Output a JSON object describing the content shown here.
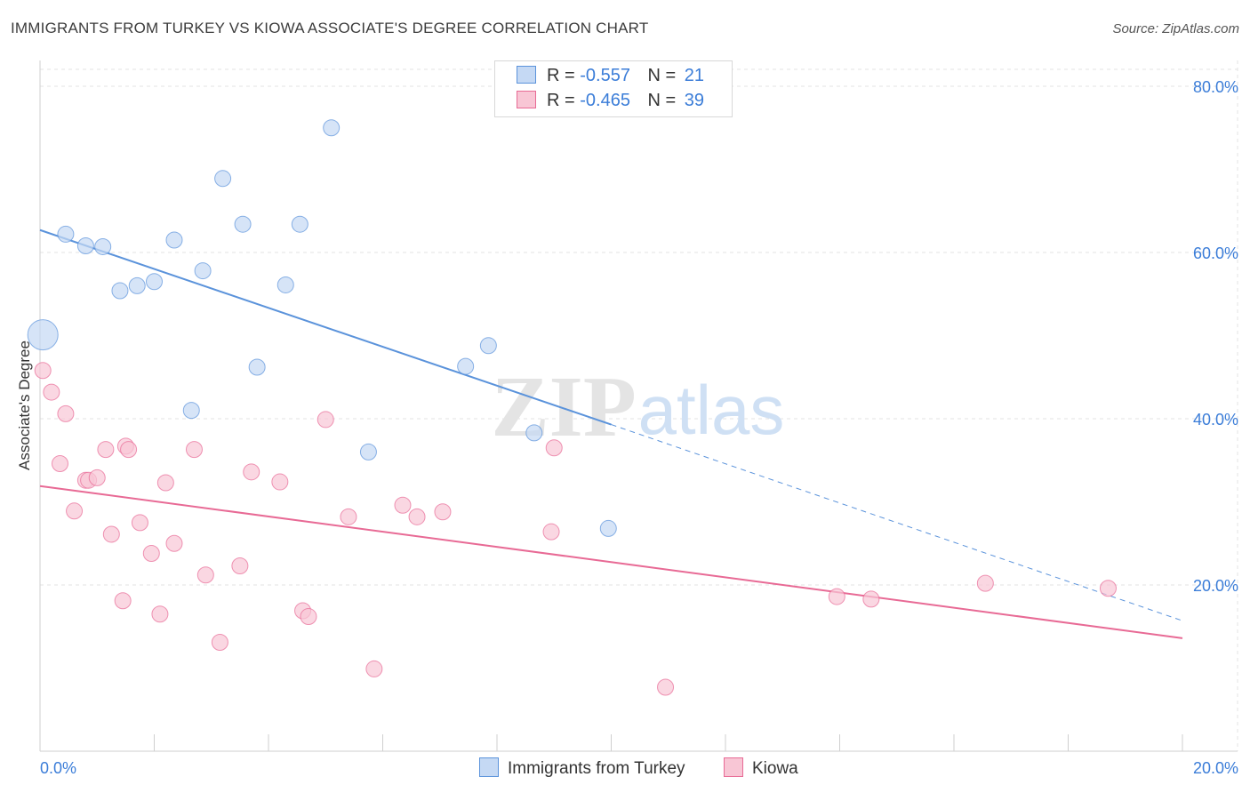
{
  "header": {
    "title": "IMMIGRANTS FROM TURKEY VS KIOWA ASSOCIATE'S DEGREE CORRELATION CHART",
    "source": "Source: ZipAtlas.com"
  },
  "watermark": {
    "zip": "ZIP",
    "atlas": "atlas"
  },
  "legend": {
    "rows": [
      {
        "r_label": "R =",
        "r_value": "-0.557",
        "n_label": "N =",
        "n_value": "21",
        "color": "#a9c7f0"
      },
      {
        "r_label": "R =",
        "r_value": "-0.465",
        "n_label": "N =",
        "n_value": "39",
        "color": "#f5b8c9"
      }
    ]
  },
  "bottom_legend": {
    "series1": "Immigrants from Turkey",
    "series2": "Kiowa"
  },
  "chart_data": {
    "type": "scatter",
    "title": "IMMIGRANTS FROM TURKEY VS KIOWA ASSOCIATE'S DEGREE CORRELATION CHART",
    "xlabel": "",
    "ylabel": "Associate's Degree",
    "xlim": [
      0,
      20
    ],
    "ylim": [
      0,
      80
    ],
    "x_ticks": [
      0,
      2,
      4,
      6,
      8,
      10,
      12,
      14,
      16,
      18,
      20
    ],
    "x_tick_labels": {
      "0": "0.0%",
      "20": "20.0%"
    },
    "y_ticks": [
      20,
      40,
      60,
      80
    ],
    "y_tick_labels": [
      "20.0%",
      "40.0%",
      "60.0%",
      "80.0%"
    ],
    "grid": "horizontal dashed",
    "legend_position": "top-center",
    "series": [
      {
        "name": "Immigrants from Turkey",
        "color": "#5b93db",
        "fill": "#c5d9f4",
        "r": -0.557,
        "n": 21,
        "points": [
          {
            "x": 0.45,
            "y": 62.2
          },
          {
            "x": 0.8,
            "y": 60.8
          },
          {
            "x": 1.1,
            "y": 60.7
          },
          {
            "x": 1.4,
            "y": 55.4
          },
          {
            "x": 1.7,
            "y": 56.0
          },
          {
            "x": 2.0,
            "y": 56.5
          },
          {
            "x": 2.35,
            "y": 61.5
          },
          {
            "x": 2.85,
            "y": 57.8
          },
          {
            "x": 3.2,
            "y": 68.9
          },
          {
            "x": 3.55,
            "y": 63.4
          },
          {
            "x": 4.55,
            "y": 63.4
          },
          {
            "x": 5.1,
            "y": 75.0
          },
          {
            "x": 4.3,
            "y": 56.1
          },
          {
            "x": 3.8,
            "y": 46.2
          },
          {
            "x": 2.65,
            "y": 41.0
          },
          {
            "x": 5.75,
            "y": 36.0
          },
          {
            "x": 7.85,
            "y": 48.8
          },
          {
            "x": 7.45,
            "y": 46.3
          },
          {
            "x": 8.65,
            "y": 38.3
          },
          {
            "x": 9.95,
            "y": 26.8
          },
          {
            "x": 0.05,
            "y": 50.1,
            "large": true
          }
        ],
        "trend": {
          "x1": 0,
          "y1": 62.7,
          "x2": 10.0,
          "y2": 39.3,
          "dash_to_x": 20,
          "dash_to_y": 15.7
        }
      },
      {
        "name": "Kiowa",
        "color": "#e86a95",
        "fill": "#f8c6d5",
        "r": -0.465,
        "n": 39,
        "points": [
          {
            "x": 0.05,
            "y": 45.8
          },
          {
            "x": 0.2,
            "y": 43.2
          },
          {
            "x": 0.45,
            "y": 40.6
          },
          {
            "x": 0.35,
            "y": 34.6
          },
          {
            "x": 0.6,
            "y": 28.9
          },
          {
            "x": 0.8,
            "y": 32.6
          },
          {
            "x": 0.85,
            "y": 32.6
          },
          {
            "x": 1.0,
            "y": 32.9
          },
          {
            "x": 1.15,
            "y": 36.3
          },
          {
            "x": 1.25,
            "y": 26.1
          },
          {
            "x": 1.45,
            "y": 18.1
          },
          {
            "x": 1.5,
            "y": 36.7
          },
          {
            "x": 1.55,
            "y": 36.3
          },
          {
            "x": 1.75,
            "y": 27.5
          },
          {
            "x": 1.95,
            "y": 23.8
          },
          {
            "x": 2.1,
            "y": 16.5
          },
          {
            "x": 2.2,
            "y": 32.3
          },
          {
            "x": 2.35,
            "y": 25.0
          },
          {
            "x": 2.7,
            "y": 36.3
          },
          {
            "x": 2.9,
            "y": 21.2
          },
          {
            "x": 3.15,
            "y": 13.1
          },
          {
            "x": 3.5,
            "y": 22.3
          },
          {
            "x": 3.7,
            "y": 33.6
          },
          {
            "x": 4.2,
            "y": 32.4
          },
          {
            "x": 4.6,
            "y": 16.9
          },
          {
            "x": 4.7,
            "y": 16.2
          },
          {
            "x": 5.0,
            "y": 39.9
          },
          {
            "x": 5.4,
            "y": 28.2
          },
          {
            "x": 5.85,
            "y": 9.9
          },
          {
            "x": 6.35,
            "y": 29.6
          },
          {
            "x": 6.6,
            "y": 28.2
          },
          {
            "x": 7.05,
            "y": 28.8
          },
          {
            "x": 8.95,
            "y": 26.4
          },
          {
            "x": 9.0,
            "y": 36.5
          },
          {
            "x": 10.95,
            "y": 7.7
          },
          {
            "x": 13.95,
            "y": 18.6
          },
          {
            "x": 14.55,
            "y": 18.3
          },
          {
            "x": 16.55,
            "y": 20.2
          },
          {
            "x": 18.7,
            "y": 19.6
          }
        ],
        "trend": {
          "x1": 0,
          "y1": 31.9,
          "x2": 20,
          "y2": 13.6
        }
      }
    ]
  }
}
